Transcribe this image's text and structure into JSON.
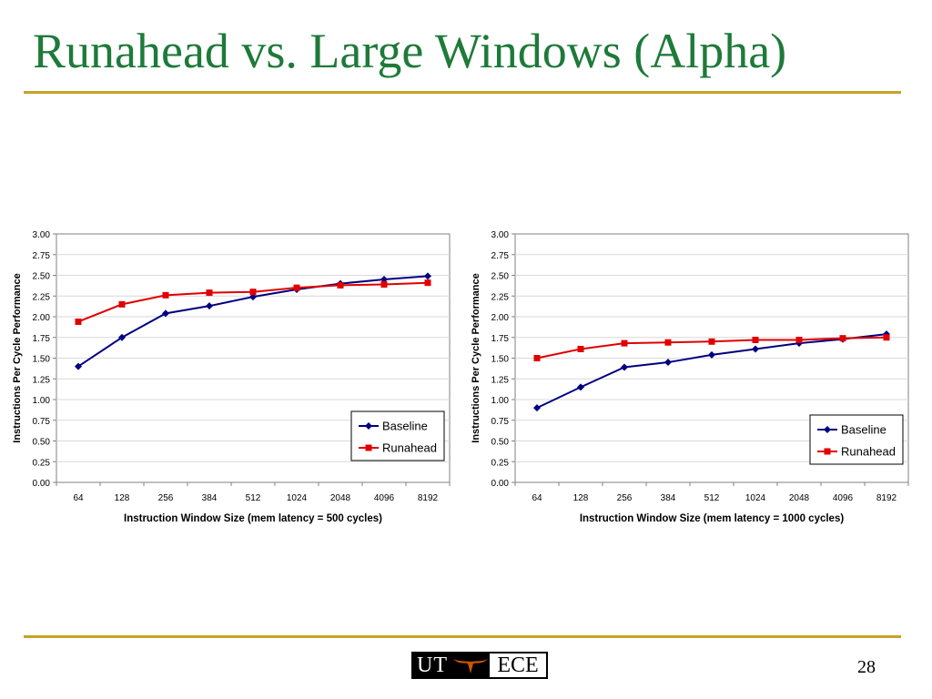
{
  "slide": {
    "title": "Runahead vs. Large Windows (Alpha)",
    "page_number": "28",
    "logo": {
      "left_text": "UT",
      "right_text": "ECE",
      "emblem": "longhorn-icon"
    },
    "accent_color": "#c9a227",
    "title_color": "#1e7a3a"
  },
  "chart_data": [
    {
      "type": "line",
      "title": "",
      "xlabel": "Instruction Window Size (mem latency = 500 cycles)",
      "ylabel": "Instructions Per Cycle Performance",
      "categories": [
        "64",
        "128",
        "256",
        "384",
        "512",
        "1024",
        "2048",
        "4096",
        "8192"
      ],
      "ylim": [
        0,
        3
      ],
      "yticks": [
        "0.00",
        "0.25",
        "0.50",
        "0.75",
        "1.00",
        "1.25",
        "1.50",
        "1.75",
        "2.00",
        "2.25",
        "2.50",
        "2.75",
        "3.00"
      ],
      "grid": true,
      "legend": "bottom-right",
      "series": [
        {
          "name": "Baseline",
          "color": "#000080",
          "marker": "diamond",
          "values": [
            1.4,
            1.75,
            2.04,
            2.13,
            2.24,
            2.33,
            2.4,
            2.45,
            2.49
          ]
        },
        {
          "name": "Runahead",
          "color": "#e00000",
          "marker": "square",
          "values": [
            1.94,
            2.15,
            2.26,
            2.29,
            2.3,
            2.35,
            2.38,
            2.39,
            2.41
          ]
        }
      ]
    },
    {
      "type": "line",
      "title": "",
      "xlabel": "Instruction Window Size (mem latency = 1000 cycles)",
      "ylabel": "Instructions Per Cycle Performance",
      "categories": [
        "64",
        "128",
        "256",
        "384",
        "512",
        "1024",
        "2048",
        "4096",
        "8192"
      ],
      "ylim": [
        0,
        3
      ],
      "yticks": [
        "0.00",
        "0.25",
        "0.50",
        "0.75",
        "1.00",
        "1.25",
        "1.50",
        "1.75",
        "2.00",
        "2.25",
        "2.50",
        "2.75",
        "3.00"
      ],
      "grid": true,
      "legend": "bottom-right",
      "series": [
        {
          "name": "Baseline",
          "color": "#000080",
          "marker": "diamond",
          "values": [
            0.9,
            1.15,
            1.39,
            1.45,
            1.54,
            1.61,
            1.68,
            1.73,
            1.79
          ]
        },
        {
          "name": "Runahead",
          "color": "#e00000",
          "marker": "square",
          "values": [
            1.5,
            1.61,
            1.68,
            1.69,
            1.7,
            1.72,
            1.72,
            1.74,
            1.75
          ]
        }
      ]
    }
  ]
}
